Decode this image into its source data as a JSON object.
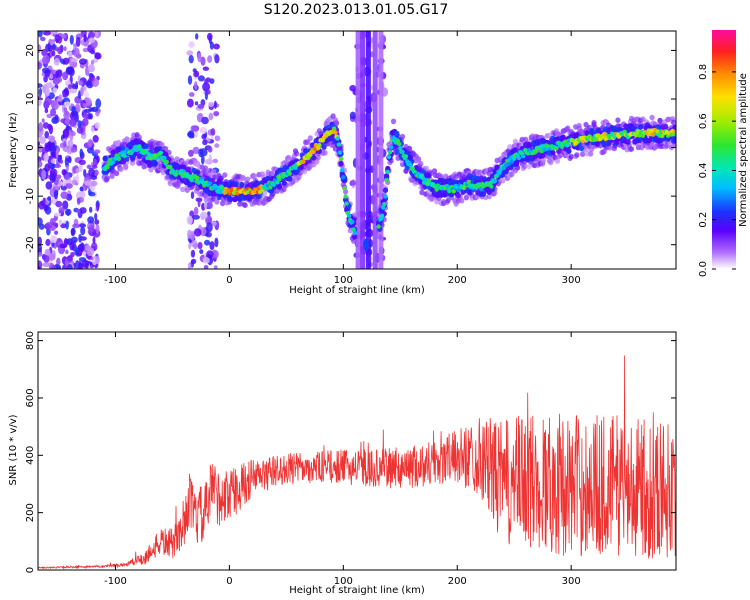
{
  "title": "S120.2023.013.01.05.G17",
  "chart_data": [
    {
      "type": "heatmap",
      "xlabel": "Height of straight line (km)",
      "ylabel": "Frequency (Hz)",
      "xlim": [
        -168,
        392
      ],
      "ylim": [
        -25,
        24
      ],
      "xticks": [
        -100,
        0,
        100,
        200,
        300
      ],
      "yticks": [
        -20,
        -10,
        0,
        10,
        20
      ],
      "colorbar": {
        "label": "Normalized spectral amplitude",
        "ticks": [
          0.0,
          0.2,
          0.4,
          0.6,
          0.8
        ],
        "range": [
          0,
          0.97
        ],
        "colormap": "rainbow (white-violet-blue-cyan-green-yellow-red-pink)"
      },
      "ridge": {
        "x": [
          -110,
          -95,
          -80,
          -70,
          -60,
          -50,
          -40,
          -30,
          -20,
          -10,
          0,
          10,
          20,
          30,
          40,
          50,
          60,
          70,
          80,
          88,
          92,
          96,
          100,
          104,
          110,
          120,
          130,
          136,
          140,
          144,
          150,
          160,
          170,
          180,
          190,
          200,
          210,
          220,
          230,
          240,
          250,
          260,
          270,
          280,
          300,
          320,
          340,
          360,
          380,
          392
        ],
        "y": [
          -4,
          -1.5,
          0,
          -2,
          -1.5,
          -5,
          -5.5,
          -6.5,
          -7.5,
          -8.5,
          -9,
          -9,
          -9,
          -8.5,
          -7,
          -5.5,
          -3.5,
          -1.5,
          1,
          3,
          3.5,
          1,
          -6,
          -13,
          -17,
          null,
          -17,
          -12,
          -2,
          2.5,
          0,
          -4,
          -6.5,
          -8,
          -8.5,
          -8.5,
          -7.5,
          -8,
          -7.5,
          -4,
          -2,
          -1,
          -0.5,
          0,
          1,
          2,
          2.5,
          3,
          3,
          3
        ]
      }
    },
    {
      "type": "line",
      "xlabel": "Height of straight line (km)",
      "ylabel": "SNR (10 * v/v)",
      "xlim": [
        -168,
        392
      ],
      "ylim": [
        0,
        830
      ],
      "xticks": [
        -100,
        0,
        100,
        200,
        300
      ],
      "yticks": [
        0,
        200,
        400,
        600,
        800
      ],
      "series": [
        {
          "color": "#ee3333",
          "x": [
            -168,
            -140,
            -110,
            -90,
            -75,
            -65,
            -60,
            -50,
            -40,
            -35,
            -30,
            -20,
            -15,
            -10,
            0,
            10,
            20,
            30,
            40,
            50,
            60,
            80,
            100,
            120,
            140,
            160,
            180,
            200,
            220,
            240,
            260,
            280,
            300,
            320,
            340,
            360,
            380,
            392
          ],
          "y": [
            8,
            10,
            12,
            20,
            40,
            80,
            100,
            90,
            150,
            250,
            180,
            200,
            300,
            250,
            260,
            290,
            320,
            330,
            345,
            350,
            355,
            360,
            360,
            355,
            355,
            360,
            375,
            395,
            400,
            300,
            310,
            305,
            295,
            295,
            300,
            285,
            285,
            280
          ],
          "spread": [
            2,
            3,
            4,
            8,
            25,
            40,
            50,
            55,
            70,
            90,
            100,
            110,
            110,
            100,
            90,
            80,
            70,
            60,
            55,
            55,
            55,
            55,
            60,
            65,
            70,
            75,
            85,
            95,
            140,
            220,
            240,
            250,
            250,
            250,
            250,
            245,
            245,
            240
          ]
        }
      ]
    }
  ]
}
